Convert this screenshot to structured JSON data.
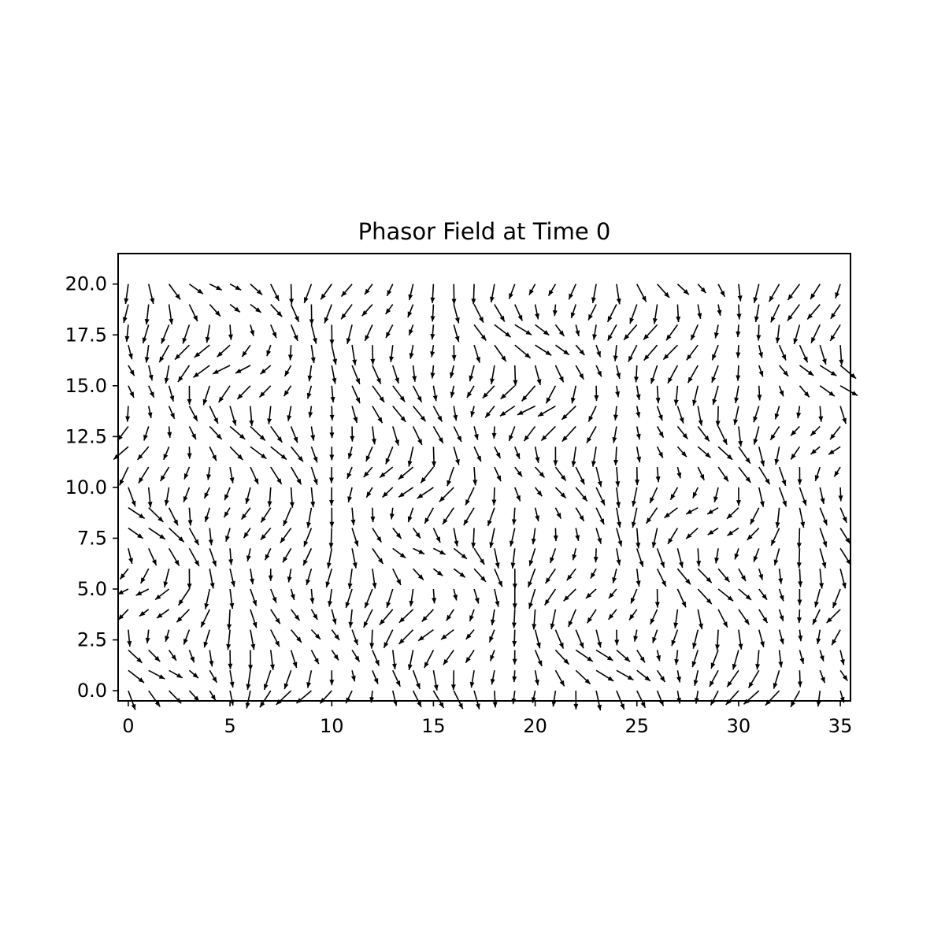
{
  "chart_data": {
    "type": "quiver",
    "title": "Phasor Field at Time 0",
    "xlabel": "",
    "ylabel": "",
    "xlim": [
      -0.5,
      35.5
    ],
    "ylim": [
      -0.5,
      21.5
    ],
    "grid": false,
    "x_ticks": [
      0,
      5,
      10,
      15,
      20,
      25,
      30,
      35
    ],
    "x_tick_labels": [
      "0",
      "5",
      "10",
      "15",
      "20",
      "25",
      "30",
      "35"
    ],
    "y_ticks": [
      0,
      2.5,
      5,
      7.5,
      10,
      12.5,
      15,
      17.5,
      20
    ],
    "y_tick_labels": [
      "0.0",
      "2.5",
      "5.0",
      "7.5",
      "10.0",
      "12.5",
      "15.0",
      "17.5",
      "20.0"
    ],
    "arrow_color": "#000000",
    "grid_x": {
      "start": 0,
      "stop": 35,
      "step": 1
    },
    "grid_y": {
      "start": 0,
      "stop": 20,
      "step": 1
    },
    "field_note": "unit-length phasor arrows on a 36 x 21 lattice, mostly pointing downward"
  }
}
